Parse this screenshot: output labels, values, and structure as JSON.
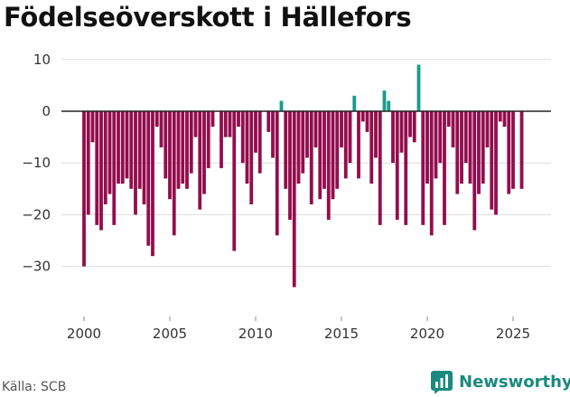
{
  "title": "Födelseöverskott i Hällefors",
  "source": "Källa: SCB",
  "brand": {
    "name": "Newsworthy",
    "icon": "newsworthy-logo-icon"
  },
  "colors": {
    "positive": "#1a9c8c",
    "negative": "#930d4d",
    "grid": "#dddddd",
    "zero": "#222222"
  },
  "chart_data": {
    "type": "bar",
    "title": "Födelseöverskott i Hällefors",
    "xlabel": "",
    "ylabel": "",
    "xlim": [
      1999.4,
      2026.3
    ],
    "ylim": [
      -38,
      11
    ],
    "yticks": [
      10,
      0,
      -10,
      -20,
      -30
    ],
    "ytick_labels": [
      "10",
      "0",
      "−10",
      "−20",
      "−30"
    ],
    "xticks": [
      2000,
      2005,
      2010,
      2015,
      2020,
      2025
    ],
    "grid": true,
    "start": 2000.0,
    "step": 0.25,
    "values": [
      -30,
      -20,
      -6,
      -22,
      -23,
      -18,
      -16,
      -22,
      -14,
      -14,
      -13,
      -15,
      -20,
      -15,
      -18,
      -26,
      -28,
      -3,
      -7,
      -13,
      -17,
      -24,
      -15,
      -14,
      -15,
      -12,
      -5,
      -19,
      -16,
      -11,
      -3,
      0,
      -11,
      -5,
      -5,
      -27,
      -3,
      -10,
      -14,
      -18,
      -8,
      -12,
      0,
      -4,
      -9,
      -24,
      2,
      -15,
      -21,
      -34,
      -14,
      -12,
      -9,
      -18,
      -7,
      -17,
      -15,
      -21,
      -17,
      -15,
      -7,
      -13,
      -10,
      3,
      -13,
      -2,
      -4,
      -14,
      -9,
      -22,
      4,
      2,
      -10,
      -21,
      -8,
      -22,
      -5,
      -6,
      9,
      -22,
      -14,
      -24,
      -13,
      -10,
      -22,
      -3,
      -7,
      -16,
      -14,
      -10,
      -14,
      -23,
      -16,
      -14,
      -7,
      -19,
      -20,
      -2,
      -3,
      -16,
      -15,
      0,
      -15
    ]
  }
}
